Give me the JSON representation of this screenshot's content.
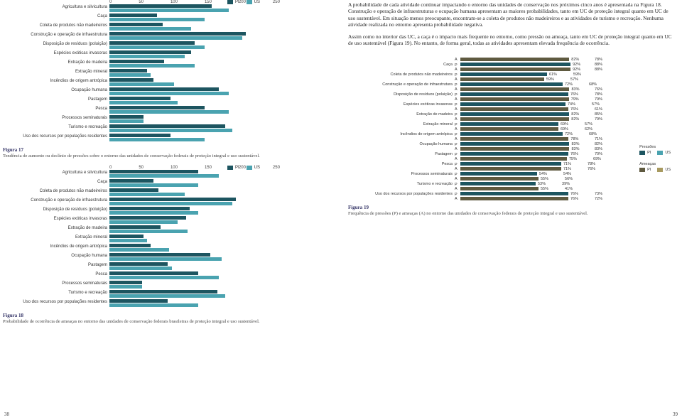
{
  "colors": {
    "pi": "#1d5560",
    "us": "#4aa3b0",
    "pressao_pi": "#1d5560",
    "pressao_us": "#4aa3b0",
    "ameaca_pi": "#5f5a40",
    "ameaca_us": "#a89a60",
    "bg": "#ffffff"
  },
  "axis_ticks": [
    "0",
    "50",
    "100",
    "150",
    "200",
    "250"
  ],
  "categories": [
    "Agricultura e silvicultura",
    "Caça",
    "Coleta de produtos não madeireiros",
    "Construção e operação de infraestrutura",
    "Disposição de resíduos (poluição)",
    "Espécies exóticas invasoras",
    "Extração de madeira",
    "Extração mineral",
    "Incêndios de origem antrópica",
    "Ocupação humana",
    "Pastagem",
    "Pesca",
    "Processos seminaturais",
    "Turismo e recreação",
    "Uso dos recursos por populações residentes"
  ],
  "legend": {
    "pi": "PI",
    "us": "US"
  },
  "fig17": {
    "num": "Figura 17",
    "text": "Tendência de aumento ou declínio de pressões sobre o entorno das unidades de conservação federais de proteção integral e uso sustentável.",
    "axis_max": 250,
    "bars": [
      {
        "pi": 150,
        "us": 175
      },
      {
        "pi": 70,
        "us": 140
      },
      {
        "pi": 78,
        "us": 120
      },
      {
        "pi": 200,
        "us": 195
      },
      {
        "pi": 125,
        "us": 140
      },
      {
        "pi": 120,
        "us": 110
      },
      {
        "pi": 80,
        "us": 125
      },
      {
        "pi": 55,
        "us": 60
      },
      {
        "pi": 65,
        "us": 95
      },
      {
        "pi": 160,
        "us": 175
      },
      {
        "pi": 90,
        "us": 100
      },
      {
        "pi": 140,
        "us": 175
      },
      {
        "pi": 50,
        "us": 50
      },
      {
        "pi": 170,
        "us": 180
      },
      {
        "pi": 90,
        "us": 140
      }
    ]
  },
  "fig18": {
    "num": "Figura 18",
    "text": "Probabilidade de ocorrência de ameaças no entorno das unidades de conservação federais brasileiras de proteção integral e uso sustentável.",
    "axis_max": 250,
    "bars": [
      {
        "pi": 130,
        "us": 160
      },
      {
        "pi": 65,
        "us": 130
      },
      {
        "pi": 72,
        "us": 110
      },
      {
        "pi": 185,
        "us": 180
      },
      {
        "pi": 118,
        "us": 130
      },
      {
        "pi": 112,
        "us": 100
      },
      {
        "pi": 75,
        "us": 115
      },
      {
        "pi": 50,
        "us": 55
      },
      {
        "pi": 60,
        "us": 88
      },
      {
        "pi": 148,
        "us": 165
      },
      {
        "pi": 85,
        "us": 92
      },
      {
        "pi": 130,
        "us": 160
      },
      {
        "pi": 48,
        "us": 48
      },
      {
        "pi": 158,
        "us": 170
      },
      {
        "pi": 85,
        "us": 130
      }
    ]
  },
  "right_paragraphs": [
    "A probabilidade de cada atividade continuar impactando o entorno das unidades de conservação nos próximos cinco anos é apresentada na Figura 18. Construção e operação de infraestruturas e ocupação humana apresentam as maiores probabilidades, tanto em UC de proteção integral quanto em UC de uso sustentável. Em situação menos preocupante, encontram-se a coleta de produtos não madeireiros e as atividades de turismo e recreação. Nenhuma atividade realizada no entorno apresenta probabilidade negativa.",
    "Assim como no interior das UC, a caça é o impacto mais frequente no entorno, como pressão ou ameaça, tanto em UC de proteção integral quanto em UC de uso sustentável (Figura 19). No entanto, de forma geral, todas as atividades apresentam elevada frequência de ocorrência."
  ],
  "fig19": {
    "num": "Figura 19",
    "text": "Frequência de pressões (P) e ameaças (A) no entorno das unidades de conservação federais de proteção integral e uso sustentável.",
    "legend_pressoes": "Pressões",
    "legend_ameacas": "Ameaças",
    "legend_pi": "PI",
    "legend_us": "US",
    "sub_p": "P",
    "sub_a": "A",
    "rows": [
      {
        "cat": "",
        "p": null,
        "a": {
          "pi": 82,
          "us": 78
        }
      },
      {
        "cat": "Caça",
        "p": {
          "pi": 92,
          "us": 88
        },
        "a": {
          "pi": 92,
          "us": 88
        }
      },
      {
        "cat": "Coleta de produtos não madeireiros",
        "p": {
          "pi": 61,
          "us": 59
        },
        "a": {
          "pi": 59,
          "us": 57
        }
      },
      {
        "cat": "Construção e operação de infraestrutura",
        "p": {
          "pi": 72,
          "us": 68
        },
        "a": {
          "pi": 83,
          "us": 76
        }
      },
      {
        "cat": "Disposição de resíduos (poluição)",
        "p": {
          "pi": 76,
          "us": 78
        },
        "a": {
          "pi": 79,
          "us": 79
        }
      },
      {
        "cat": "Espécies exóticas invasoras",
        "p": {
          "pi": 74,
          "us": 57
        },
        "a": {
          "pi": 76,
          "us": 61
        }
      },
      {
        "cat": "Extração de madeira",
        "p": {
          "pi": 82,
          "us": 85
        },
        "a": {
          "pi": 82,
          "us": 79
        }
      },
      {
        "cat": "Extração mineral",
        "p": {
          "pi": 69,
          "us": 57
        },
        "a": {
          "pi": 69,
          "us": 62
        }
      },
      {
        "cat": "Incêndios de origem antrópica",
        "p": {
          "pi": 72,
          "us": 68
        },
        "a": {
          "pi": 78,
          "us": 71
        }
      },
      {
        "cat": "Ocupação humana",
        "p": {
          "pi": 83,
          "us": 82
        },
        "a": {
          "pi": 83,
          "us": 83
        }
      },
      {
        "cat": "Pastagem",
        "p": {
          "pi": 76,
          "us": 70
        },
        "a": {
          "pi": 75,
          "us": 69
        }
      },
      {
        "cat": "Pesca",
        "p": {
          "pi": 71,
          "us": 78
        },
        "a": {
          "pi": 71,
          "us": 76
        }
      },
      {
        "cat": "Processos seminaturais",
        "p": {
          "pi": 54,
          "us": 54
        },
        "a": {
          "pi": 55,
          "us": 56
        }
      },
      {
        "cat": "Turismo e recreação",
        "p": {
          "pi": 53,
          "us": 39
        },
        "a": {
          "pi": 55,
          "us": 41
        }
      },
      {
        "cat": "Uso dos recursos por populações residentes",
        "p": {
          "pi": 76,
          "us": 73
        },
        "a": {
          "pi": 76,
          "us": 72
        }
      }
    ]
  },
  "pagenum_left": "38",
  "pagenum_right": "39"
}
